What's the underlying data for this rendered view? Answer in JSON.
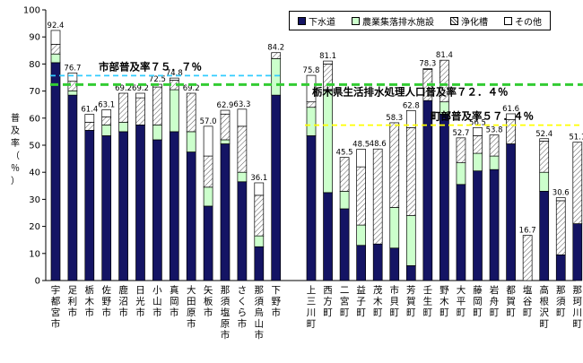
{
  "chart_data": {
    "type": "bar",
    "stacked": true,
    "ylim": [
      0,
      100
    ],
    "yticks": [
      0,
      10,
      20,
      30,
      40,
      50,
      60,
      70,
      80,
      90,
      100
    ],
    "ylabel": "普及率（％）",
    "grid": false,
    "legend_position": "top-right",
    "series": [
      {
        "name": "下水道",
        "color": "#141464",
        "pattern": "solid"
      },
      {
        "name": "農業集落排水施設",
        "color": "#ccffcc",
        "pattern": "solid"
      },
      {
        "name": "浄化槽",
        "color": "#ffffff",
        "pattern": "hatch"
      },
      {
        "name": "その他",
        "color": "#ffffff",
        "pattern": "solid"
      }
    ],
    "categories": [
      {
        "label": "宇都宮市",
        "values": [
          80.5,
          3.2,
          3.6,
          5.1
        ],
        "total_label": "92.4"
      },
      {
        "label": "足利市",
        "values": [
          68.5,
          1.6,
          3.5,
          3.1
        ],
        "total_label": "76.7"
      },
      {
        "label": "栃木市",
        "values": [
          55.5,
          0,
          3.0,
          2.9
        ],
        "total_label": "61.4"
      },
      {
        "label": "佐野市",
        "values": [
          53.5,
          4.0,
          3.0,
          2.6
        ],
        "total_label": "63.1"
      },
      {
        "label": "鹿沼市",
        "values": [
          55.0,
          3.5,
          10.7,
          0
        ],
        "total_label": "69.2"
      },
      {
        "label": "日光市",
        "values": [
          57.5,
          0,
          10.0,
          1.7
        ],
        "total_label": "69.2"
      },
      {
        "label": "小山市",
        "values": [
          52.0,
          5.5,
          14.0,
          1.0
        ],
        "total_label": "72.5"
      },
      {
        "label": "真岡市",
        "values": [
          55.0,
          15.5,
          3.5,
          0.8
        ],
        "total_label": "74.8"
      },
      {
        "label": "大田原市",
        "values": [
          47.5,
          7.5,
          14.2,
          0
        ],
        "total_label": "69.2"
      },
      {
        "label": "矢板市",
        "values": [
          27.5,
          7.0,
          11.5,
          11.0
        ],
        "total_label": "57.0"
      },
      {
        "label": "那須塩原市",
        "values": [
          50.5,
          1.5,
          9.5,
          1.4
        ],
        "total_label": "62.9"
      },
      {
        "label": "さくら市",
        "values": [
          36.5,
          3.5,
          17.0,
          6.3
        ],
        "total_label": "63.3"
      },
      {
        "label": "那須烏山市",
        "values": [
          12.5,
          4.0,
          15.0,
          4.6
        ],
        "total_label": "36.1"
      },
      {
        "label": "下野市",
        "values": [
          68.5,
          13.5,
          2.2,
          0
        ],
        "total_label": "84.2"
      },
      {
        "label": "上三川町",
        "values": [
          53.5,
          10.5,
          2.0,
          9.8
        ],
        "total_label": "75.8"
      },
      {
        "label": "西方町",
        "values": [
          32.5,
          37.5,
          10.0,
          1.1
        ],
        "total_label": "81.1"
      },
      {
        "label": "二宮町",
        "values": [
          26.5,
          6.5,
          12.5,
          0
        ],
        "total_label": "45.5"
      },
      {
        "label": "益子町",
        "values": [
          13.0,
          7.5,
          21.5,
          6.5
        ],
        "total_label": "48.5"
      },
      {
        "label": "茂木町",
        "values": [
          13.5,
          0,
          35.1,
          0
        ],
        "total_label": "48.6"
      },
      {
        "label": "市貝町",
        "values": [
          12.0,
          15.0,
          31.3,
          0
        ],
        "total_label": "58.3"
      },
      {
        "label": "芳賀町",
        "values": [
          5.5,
          18.5,
          32.5,
          6.3
        ],
        "total_label": "62.8"
      },
      {
        "label": "壬生町",
        "values": [
          66.5,
          0,
          11.5,
          0.3
        ],
        "total_label": "78.3"
      },
      {
        "label": "野木町",
        "values": [
          61.5,
          4.5,
          15.4,
          0
        ],
        "total_label": "81.4"
      },
      {
        "label": "大平町",
        "values": [
          35.5,
          8.0,
          9.2,
          0
        ],
        "total_label": "52.7"
      },
      {
        "label": "藤岡町",
        "values": [
          40.5,
          6.5,
          6.5,
          3.0
        ],
        "total_label": "56.5"
      },
      {
        "label": "岩舟町",
        "values": [
          41.0,
          5.0,
          7.8,
          0
        ],
        "total_label": "53.8"
      },
      {
        "label": "都賀町",
        "values": [
          50.5,
          0,
          9.0,
          2.1
        ],
        "total_label": "61.6"
      },
      {
        "label": "塩谷町",
        "values": [
          0,
          0,
          16.7,
          0
        ],
        "total_label": "16.7"
      },
      {
        "label": "高根沢町",
        "values": [
          33.0,
          7.0,
          11.5,
          0.9
        ],
        "total_label": "52.4"
      },
      {
        "label": "那須町",
        "values": [
          9.5,
          0,
          20.0,
          1.1
        ],
        "total_label": "30.6"
      },
      {
        "label": "那珂川町",
        "values": [
          21.0,
          0,
          30.1,
          0
        ],
        "total_label": "51.1"
      }
    ],
    "reference_lines": [
      {
        "label": "市部普及率７５．７％",
        "value": 75.7,
        "color": "#33ccff",
        "range": "cities"
      },
      {
        "label": "栃木県生活排水処理人口普及率７２．４％",
        "value": 72.4,
        "color": "#33cc33",
        "range": "all"
      },
      {
        "label": "町部普及率５７．４％",
        "value": 57.4,
        "color": "#ffff00",
        "range": "towns"
      }
    ]
  }
}
